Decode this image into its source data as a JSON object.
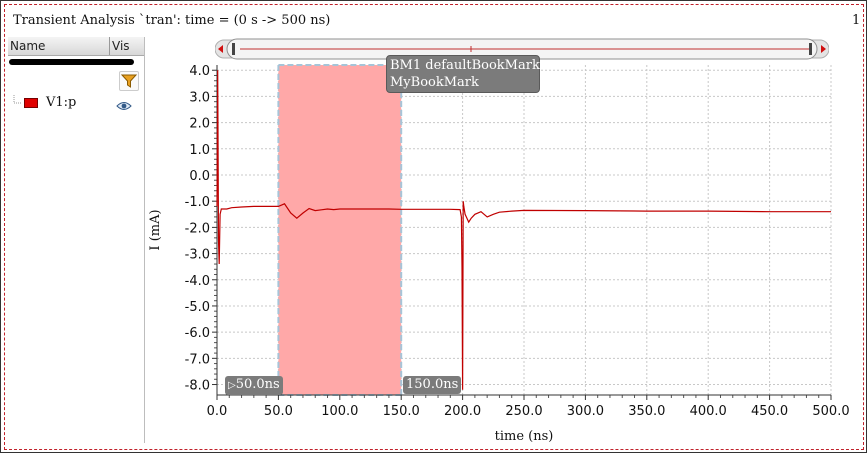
{
  "window": {
    "title": "Transient Analysis `tran': time = (0 s -> 500 ns)",
    "page_number": "1"
  },
  "signal_panel": {
    "columns": [
      "Name",
      "Vis"
    ],
    "signals": [
      {
        "name": "V1:p",
        "color": "#e00000",
        "visible_icon": "eye-icon"
      }
    ],
    "filter_icon": "funnel-icon"
  },
  "tooltip": {
    "lines": [
      "BM1 defaultBookMark",
      "MyBookMark"
    ]
  },
  "markers": {
    "start_label": "50.0ns",
    "end_label": "150.0ns",
    "start": 50,
    "end": 150
  },
  "chart_data": {
    "type": "line",
    "title": "",
    "xlabel": "time (ns)",
    "ylabel": "I (mA)",
    "xlim": [
      0,
      500
    ],
    "ylim": [
      -8.4,
      4.2
    ],
    "x_ticks": [
      "0.0",
      "50.0",
      "100.0",
      "150.0",
      "200.0",
      "250.0",
      "300.0",
      "350.0",
      "400.0",
      "450.0",
      "500.0"
    ],
    "y_ticks": [
      "4.0",
      "3.0",
      "2.0",
      "1.0",
      "0.0",
      "-1.0",
      "-2.0",
      "-3.0",
      "-4.0",
      "-5.0",
      "-6.0",
      "-7.0",
      "-8.0"
    ],
    "grid": true,
    "highlight_region": [
      50,
      150
    ],
    "series": [
      {
        "name": "V1:p",
        "color": "#c00000",
        "x": [
          0,
          0.6,
          1.2,
          1.8,
          2.5,
          3.5,
          5,
          8,
          12,
          20,
          30,
          40,
          50,
          55,
          60,
          65,
          70,
          75,
          80,
          85,
          90,
          95,
          100,
          110,
          120,
          130,
          140,
          150,
          160,
          170,
          180,
          190,
          198,
          199,
          199.5,
          200,
          200.5,
          201,
          202,
          203,
          205,
          207,
          210,
          215,
          220,
          225,
          230,
          240,
          250,
          300,
          350,
          400,
          450,
          500
        ],
        "y": [
          -1.2,
          4.0,
          -2.5,
          -3.4,
          -1.5,
          -1.3,
          -1.3,
          -1.3,
          -1.25,
          -1.22,
          -1.2,
          -1.2,
          -1.2,
          -1.1,
          -1.45,
          -1.65,
          -1.45,
          -1.28,
          -1.36,
          -1.33,
          -1.3,
          -1.32,
          -1.3,
          -1.3,
          -1.3,
          -1.3,
          -1.3,
          -1.31,
          -1.31,
          -1.31,
          -1.31,
          -1.31,
          -1.32,
          -1.6,
          -3.5,
          -8.2,
          -1.0,
          -1.2,
          -1.5,
          -1.6,
          -1.8,
          -1.65,
          -1.5,
          -1.4,
          -1.6,
          -1.5,
          -1.42,
          -1.38,
          -1.35,
          -1.36,
          -1.38,
          -1.38,
          -1.4,
          -1.4
        ]
      }
    ]
  }
}
